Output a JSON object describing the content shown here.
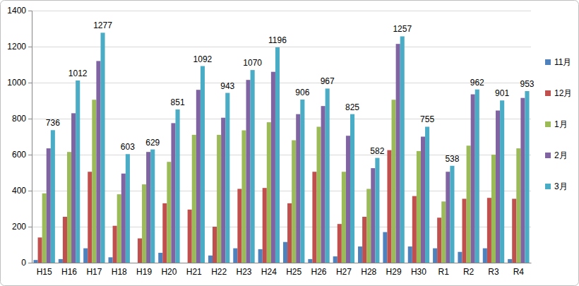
{
  "chart_data": {
    "type": "bar",
    "categories": [
      "H15",
      "H16",
      "H17",
      "H18",
      "H19",
      "H20",
      "H21",
      "H22",
      "H23",
      "H24",
      "H25",
      "H26",
      "H27",
      "H28",
      "H29",
      "H30",
      "R1",
      "R2",
      "R3",
      "R4"
    ],
    "series": [
      {
        "name": "11月",
        "color": "#4f81bd",
        "values": [
          15,
          20,
          80,
          30,
          0,
          55,
          0,
          40,
          80,
          75,
          115,
          20,
          35,
          90,
          170,
          90,
          80,
          60,
          80,
          20
        ]
      },
      {
        "name": "12月",
        "color": "#c0504d",
        "values": [
          140,
          255,
          505,
          205,
          135,
          330,
          295,
          200,
          410,
          415,
          330,
          505,
          215,
          255,
          625,
          370,
          250,
          355,
          360,
          355
        ]
      },
      {
        "name": "1月",
        "color": "#9bbb59",
        "values": [
          385,
          615,
          905,
          380,
          435,
          560,
          710,
          710,
          735,
          780,
          680,
          755,
          505,
          410,
          905,
          620,
          340,
          650,
          600,
          635
        ]
      },
      {
        "name": "2月",
        "color": "#8064a2",
        "values": [
          635,
          830,
          1120,
          495,
          615,
          775,
          960,
          805,
          1015,
          1060,
          825,
          870,
          705,
          525,
          1215,
          700,
          505,
          935,
          845,
          915
        ]
      },
      {
        "name": "3月",
        "color": "#4bacc6",
        "data_labels": true,
        "values": [
          736,
          1012,
          1277,
          603,
          629,
          851,
          1092,
          943,
          1070,
          1196,
          906,
          967,
          825,
          582,
          1257,
          755,
          538,
          962,
          901,
          953
        ]
      }
    ],
    "ylim": [
      0,
      1400
    ],
    "yticks": [
      0,
      200,
      400,
      600,
      800,
      1000,
      1200,
      1400
    ],
    "grid": true,
    "legend": "right"
  }
}
